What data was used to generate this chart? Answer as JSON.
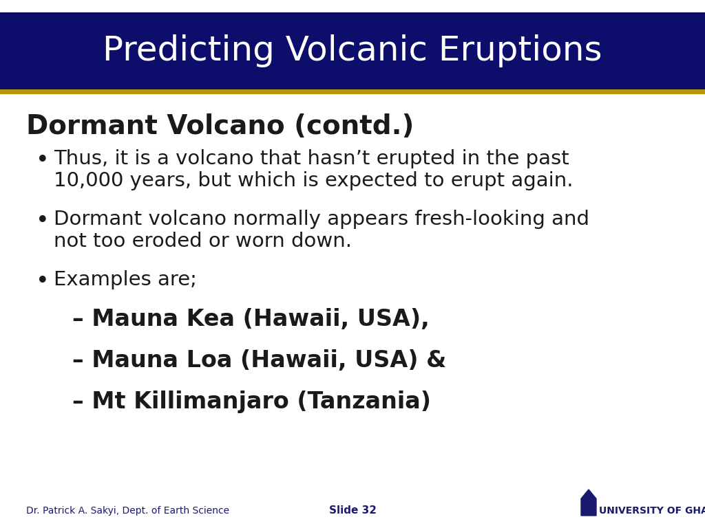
{
  "title": "Predicting Volcanic Eruptions",
  "title_color": "#FFFFFF",
  "title_bg_color": "#0D0D6B",
  "title_font_size": 36,
  "gold_bar_color": "#B8960C",
  "gold_bar_height": 0.008,
  "bg_color": "#FFFFFF",
  "slide_heading": "Dormant Volcano (contd.)",
  "slide_heading_color": "#1a1a1a",
  "slide_heading_font_size": 28,
  "bullet_color": "#1a1a1a",
  "bullet_font_size": 21,
  "sub_bullet_font_size": 24,
  "bullet1_line1": "Thus, it is a volcano that hasn’t erupted in the past",
  "bullet1_line2": "10,000 years, but which is expected to erupt again.",
  "bullet2_line1": "Dormant volcano normally appears fresh-looking and",
  "bullet2_line2": "not too eroded or worn down.",
  "bullet3": "Examples are;",
  "sub_bullets": [
    "– Mauna Kea (Hawaii, USA),",
    "– Mauna Loa (Hawaii, USA) &",
    "– Mt Killimanjaro (Tanzania)"
  ],
  "footer_left": "Dr. Patrick A. Sakyi, Dept. of Earth Science",
  "footer_center": "Slide 32",
  "footer_color": "#1a1a6e",
  "footer_font_size": 10,
  "univ_text": "UNIVERSITY OF GHANA",
  "univ_color": "#1a1a6e"
}
